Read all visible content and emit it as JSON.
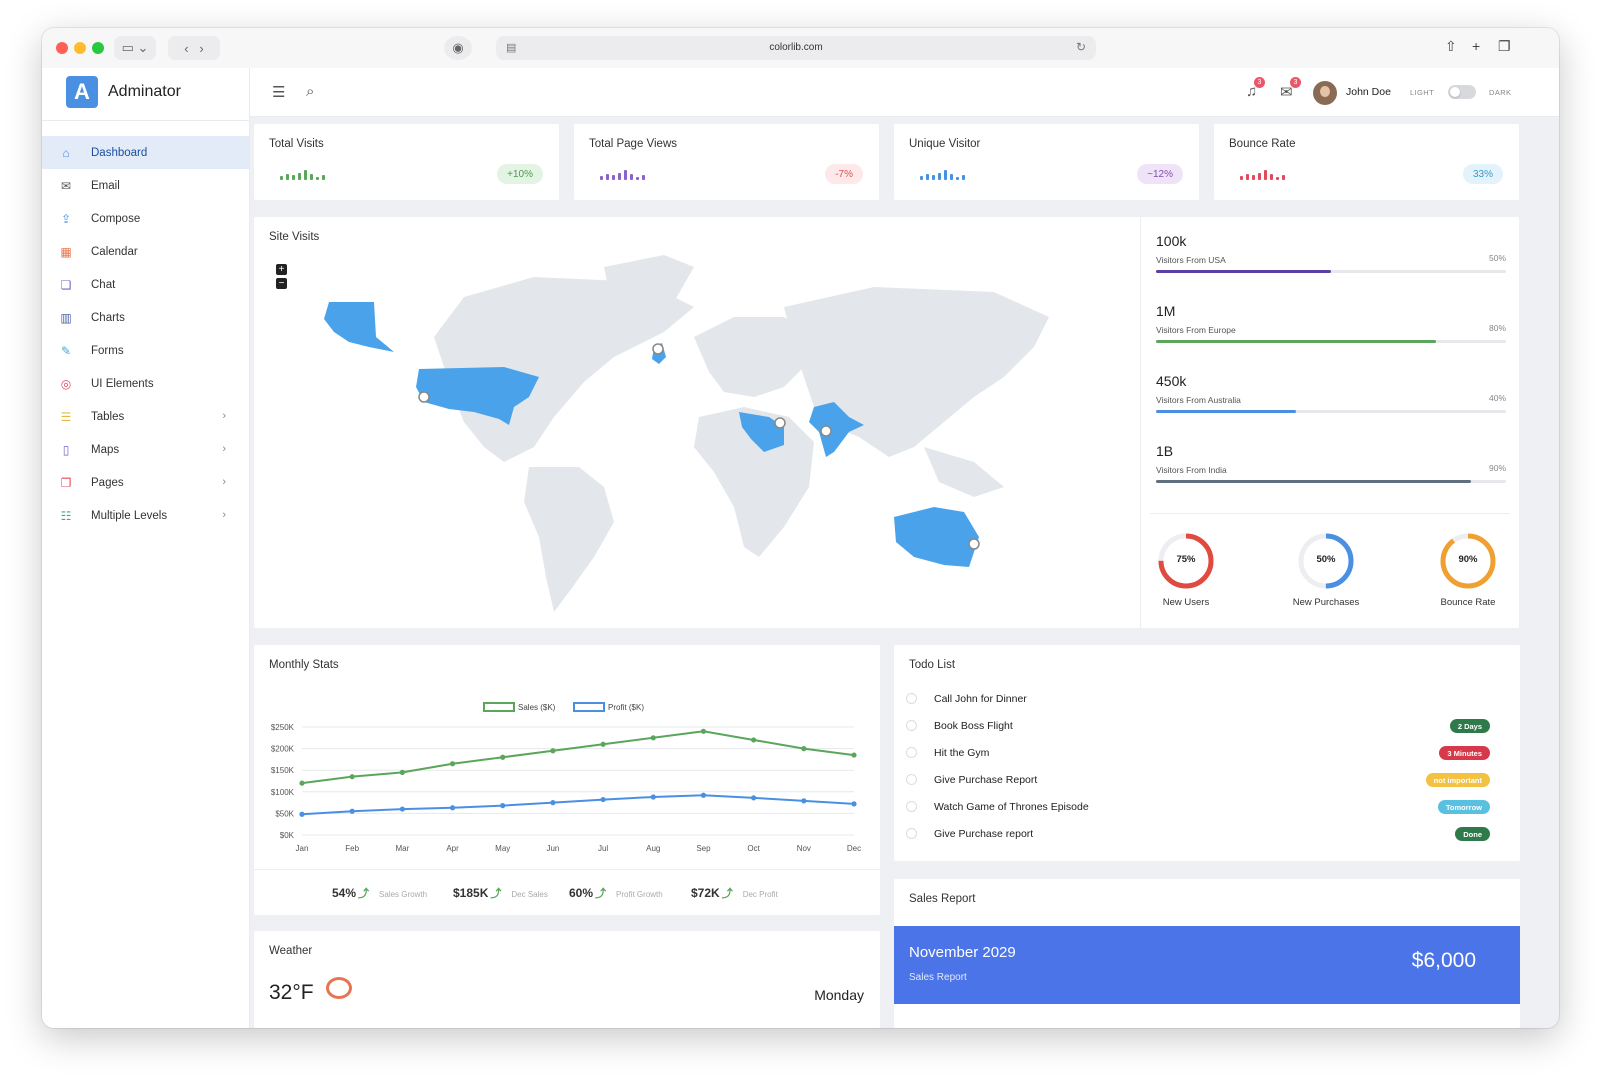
{
  "browser": {
    "url": "colorlib.com"
  },
  "brand": {
    "logo_letter": "A",
    "name": "Adminator"
  },
  "sidebar": {
    "items": [
      {
        "label": "Dashboard",
        "icon": "home-icon",
        "color": "#4a90e2",
        "glyph": "⌂",
        "active": true,
        "chevron": false
      },
      {
        "label": "Email",
        "icon": "mail-icon",
        "color": "#555555",
        "glyph": "✉",
        "active": false,
        "chevron": false
      },
      {
        "label": "Compose",
        "icon": "share-icon",
        "color": "#4a90e2",
        "glyph": "⇪",
        "active": false,
        "chevron": false
      },
      {
        "label": "Calendar",
        "icon": "calendar-icon",
        "color": "#e8734a",
        "glyph": "▦",
        "active": false,
        "chevron": false
      },
      {
        "label": "Chat",
        "icon": "chat-icon",
        "color": "#7b5fc9",
        "glyph": "❏",
        "active": false,
        "chevron": false
      },
      {
        "label": "Charts",
        "icon": "bar-chart-icon",
        "color": "#4a62a8",
        "glyph": "▥",
        "active": false,
        "chevron": false
      },
      {
        "label": "Forms",
        "icon": "pencil-icon",
        "color": "#4aa8c9",
        "glyph": "✎",
        "active": false,
        "chevron": false
      },
      {
        "label": "UI Elements",
        "icon": "palette-icon",
        "color": "#e04a5a",
        "glyph": "◎",
        "active": false,
        "chevron": false
      },
      {
        "label": "Tables",
        "icon": "list-icon",
        "color": "#e8b84a",
        "glyph": "☰",
        "active": false,
        "chevron": true
      },
      {
        "label": "Maps",
        "icon": "map-icon",
        "color": "#7b5fc9",
        "glyph": "▯",
        "active": false,
        "chevron": true
      },
      {
        "label": "Pages",
        "icon": "files-icon",
        "color": "#e04a5a",
        "glyph": "❐",
        "active": false,
        "chevron": true
      },
      {
        "label": "Multiple Levels",
        "icon": "stack-icon",
        "color": "#3fa68a",
        "glyph": "☷",
        "active": false,
        "chevron": true
      }
    ]
  },
  "topbar": {
    "notifications_count": "3",
    "messages_count": "3",
    "user_name": "John Doe",
    "light_label": "LIGHT",
    "dark_label": "DARK"
  },
  "stats": [
    {
      "title": "Total Visits",
      "badge": "+10%",
      "color": "#5aa65a",
      "badge_bg": "#e4f4e4",
      "badge_color": "#4a9a4a",
      "bars": [
        0.4,
        0.6,
        0.5,
        0.7,
        1.0,
        0.6,
        0.3,
        0.5
      ]
    },
    {
      "title": "Total Page Views",
      "badge": "-7%",
      "color": "#8a63c9",
      "badge_bg": "#fde8ea",
      "badge_color": "#d9534f",
      "bars": [
        0.4,
        0.6,
        0.5,
        0.7,
        1.0,
        0.6,
        0.3,
        0.5
      ]
    },
    {
      "title": "Unique Visitor",
      "badge": "~12%",
      "color": "#4a90e2",
      "badge_bg": "#efe4f7",
      "badge_color": "#8a4ab3",
      "bars": [
        0.4,
        0.6,
        0.5,
        0.7,
        1.0,
        0.6,
        0.3,
        0.5
      ]
    },
    {
      "title": "Bounce Rate",
      "badge": "33%",
      "color": "#e04a5a",
      "badge_bg": "#e3f2fb",
      "badge_color": "#3a98c9",
      "bars": [
        0.4,
        0.6,
        0.5,
        0.7,
        1.0,
        0.6,
        0.3,
        0.5
      ]
    }
  ],
  "site_visits": {
    "title": "Site Visits",
    "zoom_in": "+",
    "zoom_out": "−",
    "visitors": [
      {
        "value": "100k",
        "label": "Visitors From USA",
        "percent": "50%",
        "fraction": 0.5,
        "color": "#5b3fa3"
      },
      {
        "value": "1M",
        "label": "Visitors From Europe",
        "percent": "80%",
        "fraction": 0.8,
        "color": "#5aa65a"
      },
      {
        "value": "450k",
        "label": "Visitors From Australia",
        "percent": "40%",
        "fraction": 0.4,
        "color": "#4a90e2"
      },
      {
        "value": "1B",
        "label": "Visitors From India",
        "percent": "90%",
        "fraction": 0.9,
        "color": "#5f6f80"
      }
    ],
    "donuts": [
      {
        "label": "75%",
        "caption": "New Users",
        "fraction": 0.75,
        "color": "#e04a3f"
      },
      {
        "label": "50%",
        "caption": "New Purchases",
        "fraction": 0.5,
        "color": "#4a90e2"
      },
      {
        "label": "90%",
        "caption": "Bounce Rate",
        "fraction": 0.9,
        "color": "#f0a030"
      }
    ]
  },
  "monthly_stats": {
    "title": "Monthly Stats",
    "summary": [
      {
        "value": "54%",
        "label": "Sales Growth"
      },
      {
        "value": "$185K",
        "label": "Dec Sales"
      },
      {
        "value": "60%",
        "label": "Profit Growth"
      },
      {
        "value": "$72K",
        "label": "Dec Profit"
      }
    ]
  },
  "chart_data": {
    "type": "line",
    "categories": [
      "Jan",
      "Feb",
      "Mar",
      "Apr",
      "May",
      "Jun",
      "Jul",
      "Aug",
      "Sep",
      "Oct",
      "Nov",
      "Dec"
    ],
    "series": [
      {
        "name": "Sales ($K)",
        "color": "#5aa65a",
        "values": [
          120,
          135,
          145,
          165,
          180,
          195,
          210,
          225,
          240,
          220,
          200,
          185
        ]
      },
      {
        "name": "Profit ($K)",
        "color": "#4a90e2",
        "values": [
          48,
          55,
          60,
          63,
          68,
          75,
          82,
          88,
          92,
          86,
          79,
          72
        ]
      }
    ],
    "yticks": [
      "$0K",
      "$50K",
      "$100K",
      "$150K",
      "$200K",
      "$250K"
    ],
    "ylim": [
      0,
      250
    ],
    "legend": "top-center",
    "grid": true
  },
  "todo": {
    "title": "Todo List",
    "items": [
      {
        "text": "Call John for Dinner",
        "badge": "",
        "badge_color": ""
      },
      {
        "text": "Book Boss Flight",
        "badge": "2 Days",
        "badge_color": "#2f7a4a"
      },
      {
        "text": "Hit the Gym",
        "badge": "3 Minutes",
        "badge_color": "#d6394a"
      },
      {
        "text": "Give Purchase Report",
        "badge": "not important",
        "badge_color": "#f4c242"
      },
      {
        "text": "Watch Game of Thrones Episode",
        "badge": "Tomorrow",
        "badge_color": "#5ac0e0"
      },
      {
        "text": "Give Purchase report",
        "badge": "Done",
        "badge_color": "#2f7a4a"
      }
    ]
  },
  "sales_report": {
    "title": "Sales Report",
    "month": "November 2029",
    "subtitle": "Sales Report",
    "amount": "$6,000"
  },
  "weather": {
    "title": "Weather",
    "temperature": "32°F",
    "day": "Monday",
    "icon": "rain-cloud-icon"
  }
}
